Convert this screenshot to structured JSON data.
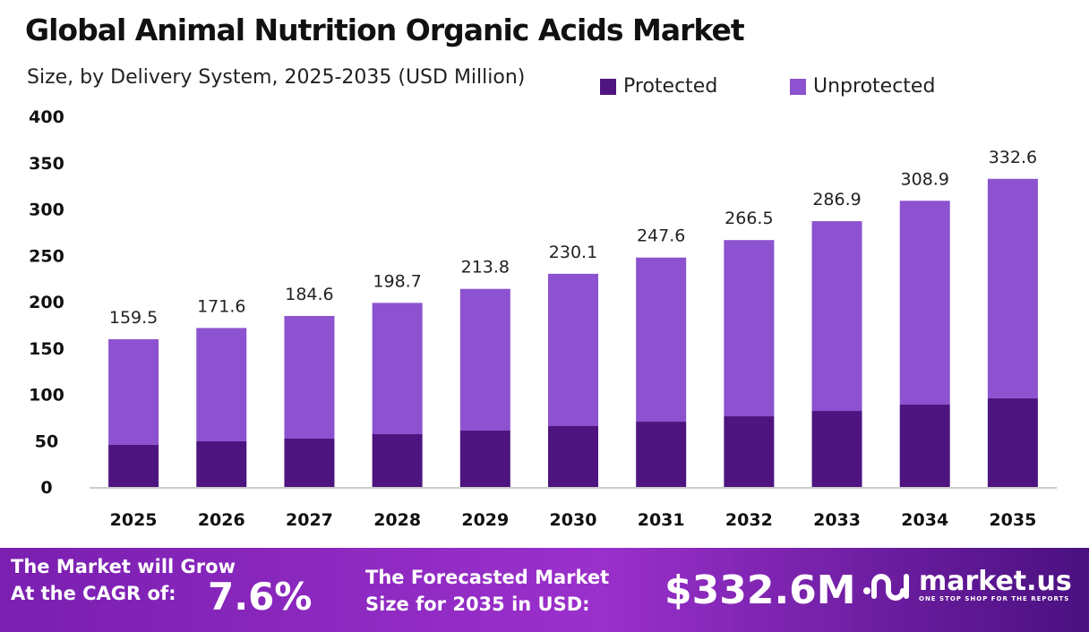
{
  "chart_data": {
    "type": "bar",
    "stacked": true,
    "title": "Global Animal Nutrition Organic Acids Market",
    "subtitle": "Size, by Delivery System, 2025-2035 (USD Million)",
    "categories": [
      "2025",
      "2026",
      "2027",
      "2028",
      "2029",
      "2030",
      "2031",
      "2032",
      "2033",
      "2034",
      "2035"
    ],
    "series": [
      {
        "name": "Protected",
        "color": "#4e1580",
        "values": [
          45.4,
          49.3,
          52.2,
          57.0,
          60.9,
          65.7,
          70.5,
          76.3,
          82.1,
          88.9,
          95.7
        ]
      },
      {
        "name": "Unprotected",
        "color": "#8c52cf",
        "values": [
          114.1,
          122.3,
          132.4,
          141.7,
          152.9,
          164.4,
          177.1,
          190.2,
          204.8,
          220.0,
          236.9
        ]
      }
    ],
    "totals": [
      "159.5",
      "171.6",
      "184.6",
      "198.7",
      "213.8",
      "230.1",
      "247.6",
      "266.5",
      "286.9",
      "308.9",
      "332.6"
    ],
    "ylim": [
      0,
      400
    ],
    "yticks": [
      "0",
      "50",
      "100",
      "150",
      "200",
      "250",
      "300",
      "350",
      "400"
    ],
    "grid": false,
    "legend": "top-right"
  },
  "footer": {
    "grow_text_1": "The Market will Grow",
    "grow_text_2": "At the CAGR of:",
    "cagr": "7.6%",
    "forecast_text_1": "The Forecasted Market",
    "forecast_text_2": "Size for 2035 in USD:",
    "forecast_value": "$332.6M",
    "logo_name": "market.us",
    "logo_tagline": "ONE STOP SHOP FOR THE REPORTS"
  }
}
